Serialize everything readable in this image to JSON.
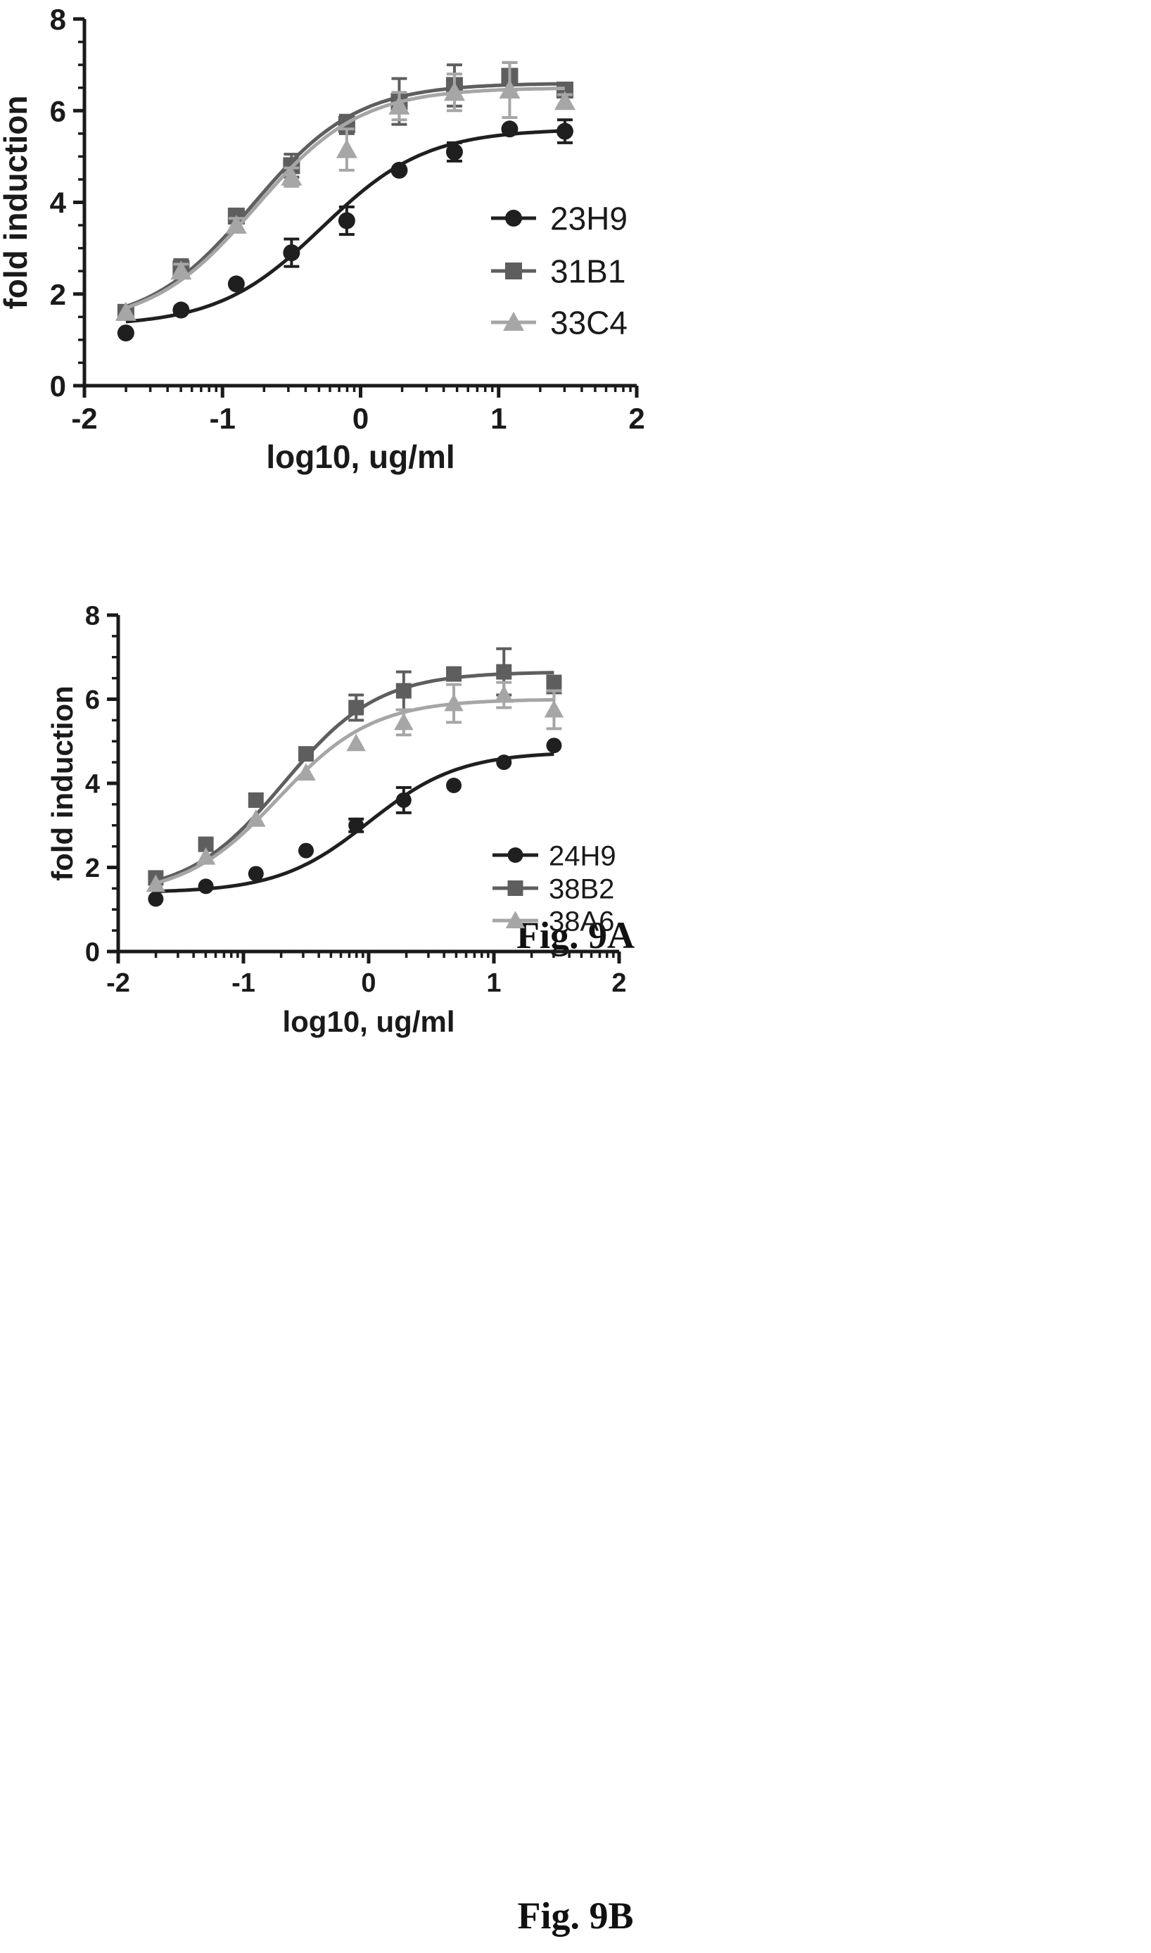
{
  "figure_captions": [
    "Fig. 9A",
    "Fig. 9B"
  ],
  "chart_data": [
    {
      "type": "scatter",
      "caption": "Fig. 9A",
      "xlabel": "log10, ug/ml",
      "ylabel": "fold induction",
      "xlim": [
        -2,
        2
      ],
      "ylim": [
        0,
        8
      ],
      "xticks": [
        -2,
        -1,
        0,
        1,
        2
      ],
      "yticks": [
        0,
        2,
        4,
        6,
        8
      ],
      "grid": false,
      "legend_position": "right",
      "x": [
        -1.7,
        -1.3,
        -0.9,
        -0.5,
        -0.1,
        0.28,
        0.68,
        1.08,
        1.48
      ],
      "series": [
        {
          "name": "23H9",
          "marker": "circle",
          "color": "#1f1f1f",
          "values": [
            1.15,
            1.65,
            2.22,
            2.9,
            3.6,
            4.7,
            5.1,
            5.6,
            5.55
          ],
          "errors": [
            0,
            0,
            0,
            0.3,
            0.3,
            0,
            0.2,
            0,
            0.25
          ],
          "fit": {
            "bottom": 1.3,
            "top": 5.6,
            "ec50_log": -0.28,
            "hill": 1.15
          }
        },
        {
          "name": "31B1",
          "marker": "square",
          "color": "#5e5e5e",
          "values": [
            1.6,
            2.55,
            3.7,
            4.8,
            5.7,
            6.2,
            6.55,
            6.75,
            6.45
          ],
          "errors": [
            0,
            0.2,
            0.15,
            0.25,
            0.2,
            0.5,
            0.45,
            0.3,
            0.15
          ],
          "fit": {
            "bottom": 1.3,
            "top": 6.6,
            "ec50_log": -0.78,
            "hill": 1.15
          }
        },
        {
          "name": "33C4",
          "marker": "triangle",
          "color": "#a6a6a6",
          "values": [
            1.6,
            2.5,
            3.5,
            4.55,
            5.15,
            6.1,
            6.4,
            6.45,
            6.2
          ],
          "errors": [
            0,
            0.15,
            0.15,
            0.2,
            0.45,
            0.3,
            0.4,
            0.6,
            0.15
          ],
          "fit": {
            "bottom": 1.3,
            "top": 6.5,
            "ec50_log": -0.76,
            "hill": 1.15
          }
        }
      ]
    },
    {
      "type": "scatter",
      "caption": "Fig. 9B",
      "xlabel": "log10, ug/ml",
      "ylabel": "fold induction",
      "xlim": [
        -2,
        2
      ],
      "ylim": [
        0,
        8
      ],
      "xticks": [
        -2,
        -1,
        0,
        1,
        2
      ],
      "yticks": [
        0,
        2,
        4,
        6,
        8
      ],
      "grid": false,
      "legend_position": "bottom-right",
      "x": [
        -1.7,
        -1.3,
        -0.9,
        -0.5,
        -0.1,
        0.28,
        0.68,
        1.08,
        1.48
      ],
      "series": [
        {
          "name": "24H9",
          "marker": "circle",
          "color": "#1f1f1f",
          "values": [
            1.25,
            1.55,
            1.85,
            2.4,
            3.0,
            3.6,
            3.95,
            4.5,
            4.9
          ],
          "errors": [
            0,
            0,
            0,
            0,
            0.15,
            0.3,
            0,
            0,
            0
          ],
          "fit": {
            "bottom": 1.4,
            "top": 4.75,
            "ec50_log": 0.0,
            "hill": 1.2
          }
        },
        {
          "name": "38B2",
          "marker": "square",
          "color": "#5e5e5e",
          "values": [
            1.75,
            2.55,
            3.6,
            4.7,
            5.8,
            6.2,
            6.6,
            6.65,
            6.35
          ],
          "errors": [
            0,
            0,
            0,
            0,
            0.3,
            0.45,
            0,
            0.55,
            0.2
          ],
          "fit": {
            "bottom": 1.35,
            "top": 6.65,
            "ec50_log": -0.68,
            "hill": 1.15
          }
        },
        {
          "name": "38A6",
          "marker": "triangle",
          "color": "#a6a6a6",
          "values": [
            1.6,
            2.25,
            3.15,
            4.25,
            4.95,
            5.45,
            5.9,
            6.1,
            5.75
          ],
          "errors": [
            0,
            0,
            0,
            0,
            0,
            0.3,
            0.45,
            0.3,
            0.45
          ],
          "fit": {
            "bottom": 1.3,
            "top": 6.0,
            "ec50_log": -0.72,
            "hill": 1.15
          }
        }
      ]
    }
  ]
}
